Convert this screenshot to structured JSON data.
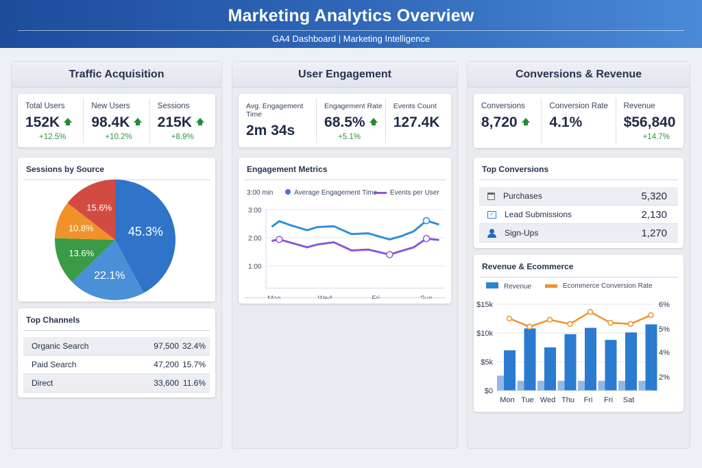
{
  "header": {
    "title": "Marketing Analytics Overview",
    "subtitle": "GA4 Dashboard | Marketing Intelligence"
  },
  "traffic": {
    "title": "Traffic Acquisition",
    "kpis": [
      {
        "label": "Total Users",
        "value": "152K",
        "change": "+12.5%"
      },
      {
        "label": "New Users",
        "value": "98.4K",
        "change": "+10.2%"
      },
      {
        "label": "Sessions",
        "value": "215K",
        "change": "+8.9%"
      }
    ],
    "channels_title": "Top Channels",
    "channels": [
      {
        "name": "Organic Search",
        "value": "97,500",
        "pct": "32.4%"
      },
      {
        "name": "Paid Search",
        "value": "47,200",
        "pct": "15.7%"
      },
      {
        "name": "Direct",
        "value": "33,600",
        "pct": "11.6%"
      }
    ]
  },
  "engagement": {
    "title": "User Engagement",
    "kpis": [
      {
        "label": "Avg. Engagement Time",
        "value": "2m 34s",
        "change": ""
      },
      {
        "label": "Engagement Rate",
        "value": "68.5%",
        "change": "+5.1%"
      },
      {
        "label": "Events Count",
        "value": "127.4K",
        "change": ""
      }
    ]
  },
  "conversions": {
    "title": "Conversions & Revenue",
    "kpis": [
      {
        "label": "Conversions",
        "value": "8,720",
        "change": ""
      },
      {
        "label": "Conversion Rate",
        "value": "4.1%",
        "change": ""
      },
      {
        "label": "Revenue",
        "value": "$56,840",
        "change": "+14.7%"
      }
    ],
    "top_title": "Top Conversions",
    "top": [
      {
        "icon": "calendar-icon",
        "name": "Purchases",
        "value": "5,320"
      },
      {
        "icon": "envelope-icon",
        "name": "Lead Submissions",
        "value": "2,130"
      },
      {
        "icon": "user-icon",
        "name": "Sign-Ups",
        "value": "1,270"
      }
    ]
  },
  "chart_data": [
    {
      "type": "pie",
      "title": "Sessions by Source",
      "labels": [
        "45.3%",
        "22.1%",
        "13.6%",
        "10.8%",
        "15.6%"
      ],
      "values": [
        45.3,
        22.1,
        13.6,
        10.8,
        15.6
      ],
      "colors": [
        "#2f74c8",
        "#4a90d6",
        "#3a9a46",
        "#ef922a",
        "#d24b43"
      ]
    },
    {
      "type": "line",
      "title": "Engagement Metrics",
      "unit_label": "3:00 min",
      "ylim": [
        0.5,
        3
      ],
      "yticks": [
        "3:00",
        "2:00",
        "1:00"
      ],
      "ytick_values": [
        3,
        2,
        1
      ],
      "xticks": [
        "Mon",
        "Wed",
        "Fri",
        "Sun"
      ],
      "xtick_values": [
        0,
        2,
        4,
        6
      ],
      "series": [
        {
          "name": "Average Engagement Time",
          "color": "#2e8fd8",
          "x": [
            -0.1,
            0.2,
            0.6,
            1.3,
            1.7,
            2.35,
            3.05,
            3.7,
            4.55,
            5.05,
            5.5,
            6.0,
            6.5
          ],
          "y": [
            2.39,
            2.59,
            2.46,
            2.27,
            2.38,
            2.41,
            2.13,
            2.16,
            1.94,
            2.07,
            2.23,
            2.61,
            2.47
          ],
          "markers": [
            11
          ]
        },
        {
          "name": "Events per User",
          "color": "#8a56d8",
          "x": [
            -0.1,
            0.2,
            0.6,
            1.3,
            1.7,
            2.35,
            3.05,
            3.7,
            4.55,
            5.05,
            5.5,
            6.0,
            6.5
          ],
          "y": [
            1.89,
            1.94,
            1.84,
            1.66,
            1.76,
            1.84,
            1.55,
            1.58,
            1.4,
            1.54,
            1.66,
            1.97,
            1.92
          ],
          "markers": [
            1,
            8,
            11
          ]
        }
      ]
    },
    {
      "type": "bar",
      "title": "Revenue & Ecommerce",
      "categories": [
        "Mon",
        "Tue",
        "Wed",
        "Thu",
        "Fri",
        "Fri",
        "Sat",
        ""
      ],
      "ylim": [
        0,
        15000
      ],
      "yticks": [
        "$15k",
        "$10k",
        "$5k",
        "$0"
      ],
      "ytick_values": [
        15000,
        10000,
        5000,
        0
      ],
      "y2ticks": [
        "6%",
        "5%",
        "4%",
        "2%"
      ],
      "series": [
        {
          "name": "Revenue",
          "color": "#2b7bd0",
          "values": [
            7000,
            10800,
            7500,
            9800,
            10900,
            8800,
            10100,
            11500
          ]
        },
        {
          "name": "",
          "color": "#8fb8e6",
          "values": [
            2600,
            1700,
            1700,
            1700,
            1700,
            1700,
            1700,
            1700
          ]
        },
        {
          "name": "Ecommerce Conversion Rate",
          "color": "#f0922a",
          "values": [
            5.42,
            5.09,
            5.37,
            5.2,
            5.69,
            5.25,
            5.2,
            5.56
          ]
        }
      ]
    }
  ]
}
